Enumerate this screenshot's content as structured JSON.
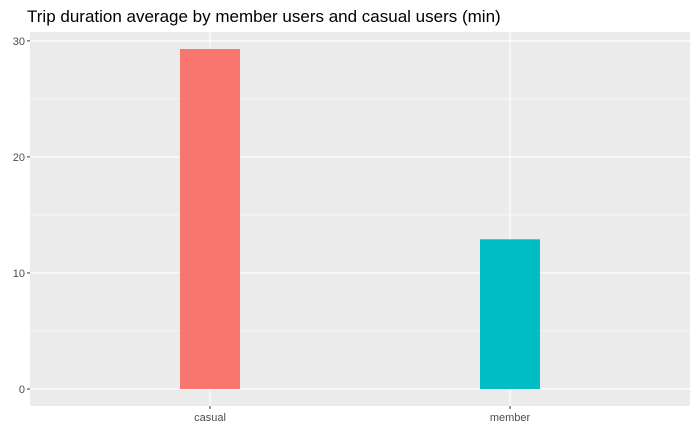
{
  "chart_data": {
    "type": "bar",
    "title": "Trip duration average by member users and casual users (min)",
    "xlabel": "",
    "ylabel": "",
    "categories": [
      "casual",
      "member"
    ],
    "values": [
      29.3,
      12.9
    ],
    "ylim": [
      -1.465,
      30.765
    ],
    "yticks": [
      0,
      10,
      20,
      30
    ],
    "grid": true,
    "legend": "none",
    "colors": {
      "panel_background": "#ebebeb",
      "grid": "#ffffff",
      "bars": [
        "#f8766d",
        "#00bfc4"
      ],
      "tick_text": "#4d4d4d"
    }
  }
}
